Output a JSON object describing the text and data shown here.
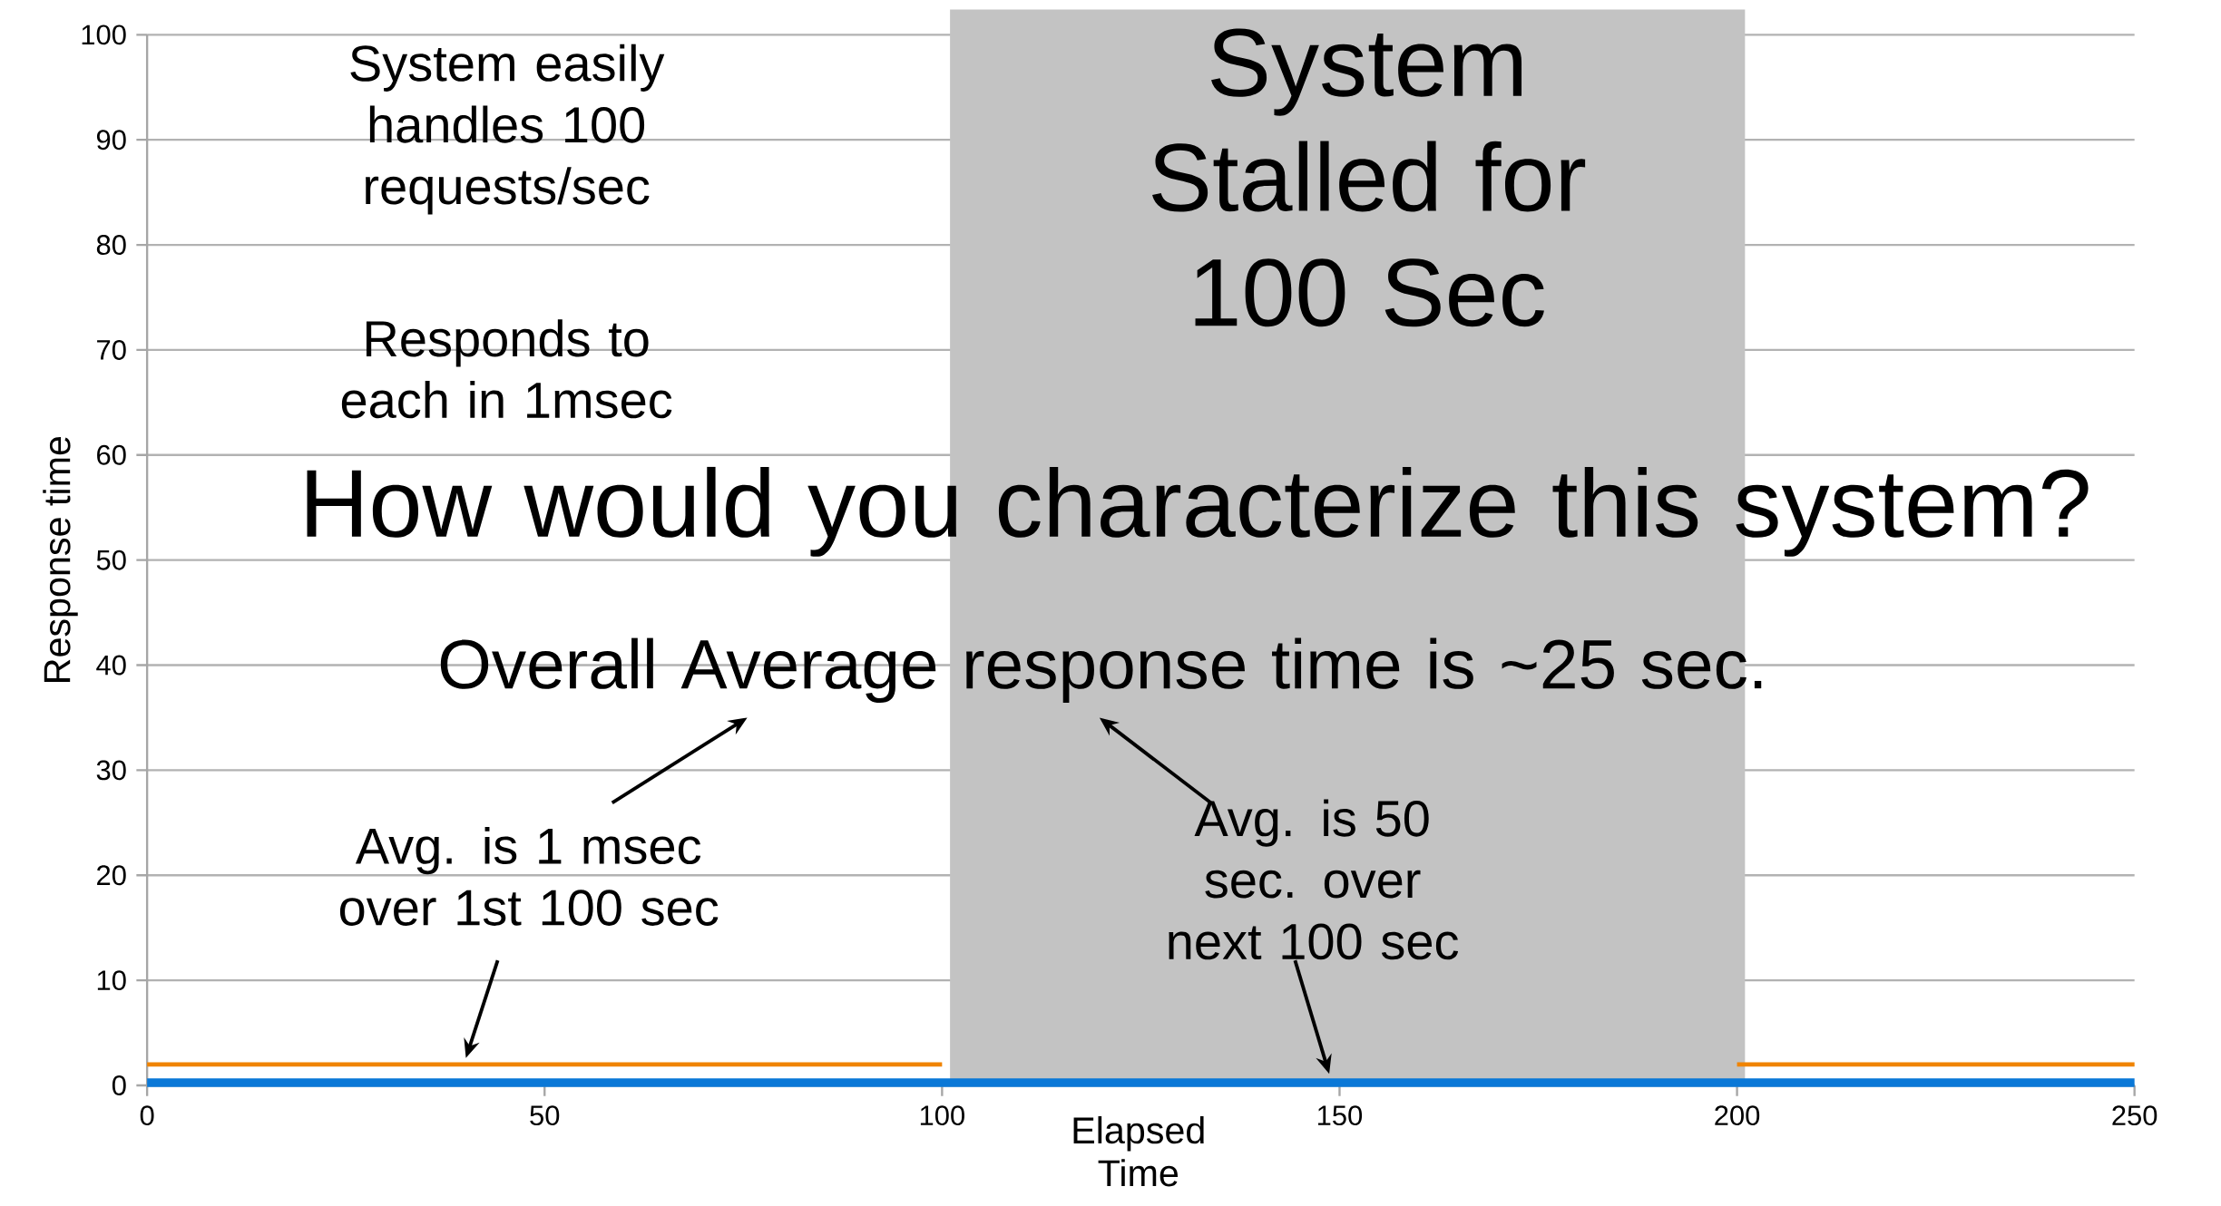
{
  "chart_data": {
    "type": "line",
    "xlabel": "Elapsed Time",
    "ylabel": "Response time",
    "xlim": [
      0,
      250
    ],
    "xticks": [
      0,
      50,
      100,
      150,
      200,
      250
    ],
    "ylim": [
      0,
      100
    ],
    "yticks": [
      0,
      10,
      20,
      30,
      40,
      50,
      60,
      70,
      80,
      90,
      100
    ],
    "grid": "y",
    "series": [
      {
        "color": "#0a78d7",
        "x": [
          0,
          100,
          200,
          250
        ],
        "values": [
          0.25,
          0.25,
          0.25,
          0.25
        ]
      },
      {
        "color": "#f08400",
        "x": [
          0,
          100,
          150,
          200,
          250
        ],
        "values": [
          2,
          2,
          null,
          2,
          2
        ]
      }
    ],
    "bands": [
      {
        "axis": "x",
        "from": 101,
        "to": 201,
        "color": "#c3c3c3"
      }
    ],
    "annotations": [
      "System easily handles 100 requests/sec",
      "Responds to each in 1msec",
      "System Stalled for 100 Sec",
      "How would you characterize this system?",
      "Overall Average response time is ~25 sec.",
      "Avg. is 1 msec over 1st 100 sec",
      "Avg. is 50 sec. over next 100 sec"
    ]
  }
}
